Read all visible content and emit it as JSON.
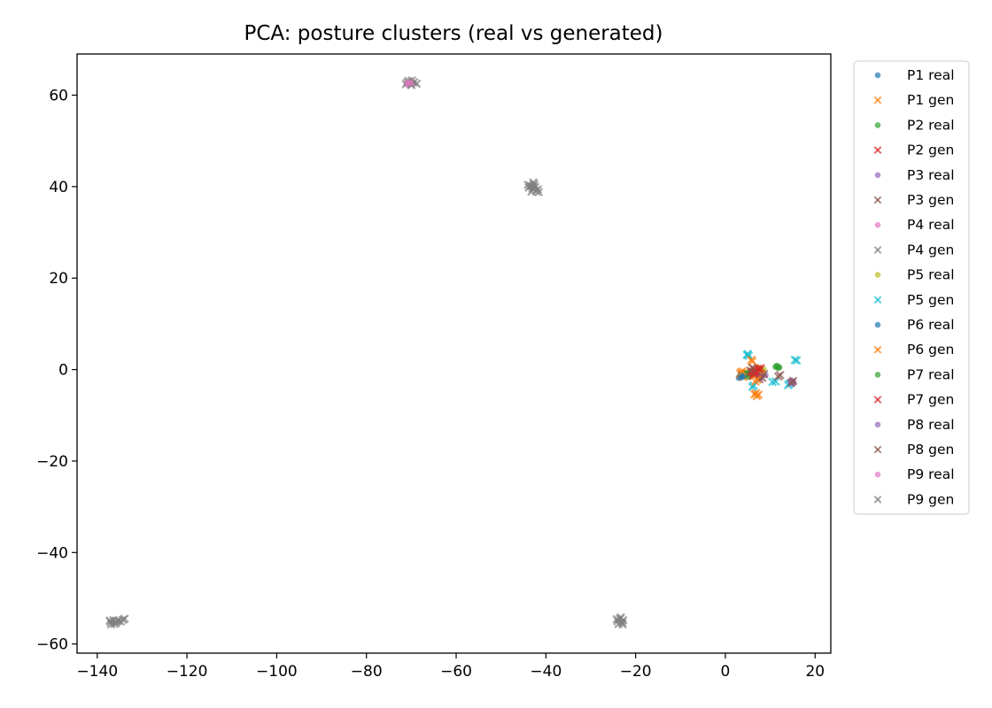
{
  "chart_data": {
    "type": "scatter",
    "title": "PCA: posture clusters (real vs generated)",
    "xlabel": "",
    "ylabel": "",
    "xlim": [
      -144.5,
      23.5
    ],
    "ylim": [
      -62,
      69
    ],
    "xticks": [
      {
        "value": -140,
        "label": "−140"
      },
      {
        "value": -120,
        "label": "−120"
      },
      {
        "value": -100,
        "label": "−100"
      },
      {
        "value": -80,
        "label": "−80"
      },
      {
        "value": -60,
        "label": "−60"
      },
      {
        "value": -40,
        "label": "−40"
      },
      {
        "value": -20,
        "label": "−20"
      },
      {
        "value": 0,
        "label": "0"
      },
      {
        "value": 20,
        "label": "20"
      }
    ],
    "yticks": [
      {
        "value": -60,
        "label": "−60"
      },
      {
        "value": -40,
        "label": "−40"
      },
      {
        "value": -20,
        "label": "−20"
      },
      {
        "value": 0,
        "label": "0"
      },
      {
        "value": 20,
        "label": "20"
      },
      {
        "value": 40,
        "label": "40"
      },
      {
        "value": 60,
        "label": "60"
      }
    ],
    "grid": false,
    "legend_position": "outside-right",
    "series": [
      {
        "name": "P1 real",
        "marker": "circle",
        "color": "#1f77b4",
        "points": [
          [
            3.2,
            -1.5
          ],
          [
            3.5,
            -1.0
          ],
          [
            3.9,
            -1.3
          ],
          [
            4.2,
            -0.8
          ],
          [
            3.0,
            -1.8
          ],
          [
            4.6,
            -1.2
          ]
        ]
      },
      {
        "name": "P1 gen",
        "marker": "x",
        "color": "#ff7f0e",
        "points": [
          [
            3.3,
            -0.9
          ],
          [
            4.0,
            -1.6
          ],
          [
            3.7,
            -1.1
          ],
          [
            4.4,
            -0.7
          ],
          [
            5.0,
            -1.4
          ],
          [
            3.5,
            -0.6
          ]
        ]
      },
      {
        "name": "P2 real",
        "marker": "circle",
        "color": "#2ca02c",
        "points": [
          [
            4.8,
            -1.0
          ],
          [
            5.5,
            -0.5
          ],
          [
            6.0,
            -1.2
          ],
          [
            5.2,
            -1.6
          ],
          [
            4.5,
            -0.8
          ]
        ]
      },
      {
        "name": "P2 gen",
        "marker": "x",
        "color": "#d62728",
        "points": [
          [
            5.8,
            -0.6
          ],
          [
            6.3,
            -1.0
          ],
          [
            6.6,
            -0.4
          ],
          [
            7.0,
            -0.9
          ],
          [
            6.2,
            -1.3
          ]
        ]
      },
      {
        "name": "P3 real",
        "marker": "circle",
        "color": "#9467bd",
        "points": [
          [
            7.5,
            -1.0
          ],
          [
            8.0,
            -1.5
          ],
          [
            8.4,
            -0.7
          ],
          [
            7.8,
            -1.9
          ],
          [
            8.9,
            -1.2
          ]
        ]
      },
      {
        "name": "P3 gen",
        "marker": "x",
        "color": "#8c564b",
        "points": [
          [
            7.2,
            -0.6
          ],
          [
            8.2,
            -1.8
          ],
          [
            8.6,
            -1.0
          ],
          [
            7.6,
            -2.1
          ]
        ]
      },
      {
        "name": "P4 real",
        "marker": "circle",
        "color": "#e377c2",
        "points": [
          [
            -71.0,
            62.6
          ],
          [
            -70.4,
            63.0
          ],
          [
            -69.8,
            62.5
          ],
          [
            -70.7,
            62.2
          ],
          [
            -70.1,
            62.9
          ],
          [
            -69.5,
            62.7
          ]
        ]
      },
      {
        "name": "P4 gen",
        "marker": "x",
        "color": "#7f7f7f",
        "points": [
          [
            -71.2,
            62.4
          ],
          [
            -70.6,
            63.1
          ],
          [
            -70.0,
            62.2
          ],
          [
            -69.4,
            62.8
          ],
          [
            -68.8,
            62.5
          ],
          [
            -70.9,
            62.8
          ],
          [
            -69.9,
            63.2
          ]
        ]
      },
      {
        "name": "P5 real",
        "marker": "circle",
        "color": "#bcbd22",
        "points": [
          [
            6.8,
            -0.2
          ],
          [
            7.6,
            0.2
          ],
          [
            8.2,
            -0.3
          ],
          [
            7.2,
            0.4
          ],
          [
            8.5,
            0.1
          ]
        ]
      },
      {
        "name": "P5 gen",
        "marker": "x",
        "color": "#17becf",
        "points": [
          [
            4.8,
            3.2
          ],
          [
            5.2,
            3.0
          ],
          [
            6.0,
            -3.8
          ],
          [
            6.3,
            -3.5
          ],
          [
            10.5,
            -2.7
          ],
          [
            11.2,
            -2.6
          ],
          [
            14.0,
            -3.4
          ],
          [
            14.3,
            -3.1
          ],
          [
            15.5,
            2.1
          ],
          [
            15.9,
            2.0
          ],
          [
            5.0,
            3.4
          ]
        ]
      },
      {
        "name": "P6 real",
        "marker": "circle",
        "color": "#1f77b4",
        "points": [
          [
            3.6,
            -1.7
          ],
          [
            4.0,
            -1.4
          ],
          [
            3.4,
            -1.2
          ]
        ]
      },
      {
        "name": "P6 gen",
        "marker": "x",
        "color": "#ff7f0e",
        "points": [
          [
            6.5,
            -5.4
          ],
          [
            7.0,
            -5.8
          ],
          [
            7.4,
            -5.5
          ],
          [
            6.8,
            -5.2
          ],
          [
            5.8,
            2.1
          ],
          [
            6.0,
            1.8
          ],
          [
            7.1,
            -2.2
          ],
          [
            6.7,
            -2.6
          ],
          [
            3.8,
            -0.4
          ]
        ]
      },
      {
        "name": "P7 real",
        "marker": "circle",
        "color": "#2ca02c",
        "points": [
          [
            11.2,
            0.6
          ],
          [
            11.8,
            0.4
          ],
          [
            11.5,
            0.8
          ],
          [
            12.0,
            0.5
          ]
        ]
      },
      {
        "name": "P7 gen",
        "marker": "x",
        "color": "#d62728",
        "points": [
          [
            6.4,
            0.1
          ],
          [
            6.9,
            -0.3
          ],
          [
            7.3,
            0.2
          ],
          [
            6.1,
            -0.5
          ],
          [
            7.6,
            -0.1
          ],
          [
            6.6,
            -0.8
          ],
          [
            7.9,
            0.3
          ]
        ]
      },
      {
        "name": "P8 real",
        "marker": "circle",
        "color": "#9467bd",
        "points": [
          [
            14.5,
            -2.6
          ],
          [
            15.0,
            -3.0
          ],
          [
            14.8,
            -2.4
          ],
          [
            15.2,
            -2.8
          ]
        ]
      },
      {
        "name": "P8 gen",
        "marker": "x",
        "color": "#8c564b",
        "points": [
          [
            14.7,
            -2.9
          ],
          [
            15.1,
            -2.5
          ],
          [
            11.8,
            -1.5
          ],
          [
            12.2,
            -1.2
          ],
          [
            6.0,
            0.4
          ],
          [
            5.6,
            -0.2
          ]
        ]
      },
      {
        "name": "P9 real",
        "marker": "circle",
        "color": "#e377c2",
        "points": [
          [
            -70.2,
            62.7
          ],
          [
            -70.8,
            62.6
          ]
        ]
      },
      {
        "name": "P9 gen",
        "marker": "x",
        "color": "#7f7f7f",
        "points": [
          [
            -43.5,
            40.2
          ],
          [
            -43.0,
            39.5
          ],
          [
            -42.6,
            40.5
          ],
          [
            -42.2,
            39.0
          ],
          [
            -43.8,
            39.8
          ],
          [
            -42.8,
            40.9
          ],
          [
            -41.8,
            39.4
          ],
          [
            -43.2,
            38.9
          ],
          [
            -42.4,
            39.9
          ],
          [
            -44.0,
            40.4
          ],
          [
            -41.6,
            38.8
          ],
          [
            -42.9,
            40.1
          ],
          [
            -24.0,
            -55.0
          ],
          [
            -23.5,
            -54.5
          ],
          [
            -23.0,
            -55.3
          ],
          [
            -23.8,
            -55.6
          ],
          [
            -22.8,
            -54.8
          ],
          [
            -23.3,
            -54.2
          ],
          [
            -24.2,
            -54.6
          ],
          [
            -22.9,
            -55.7
          ],
          [
            -137.0,
            -55.2
          ],
          [
            -136.4,
            -54.8
          ],
          [
            -135.8,
            -55.4
          ],
          [
            -136.9,
            -55.7
          ],
          [
            -135.3,
            -54.9
          ],
          [
            -134.8,
            -55.1
          ],
          [
            -136.2,
            -55.6
          ],
          [
            -133.9,
            -54.5
          ],
          [
            -134.3,
            -54.7
          ],
          [
            -137.2,
            -54.9
          ],
          [
            -135.6,
            -55.0
          ]
        ]
      }
    ]
  }
}
